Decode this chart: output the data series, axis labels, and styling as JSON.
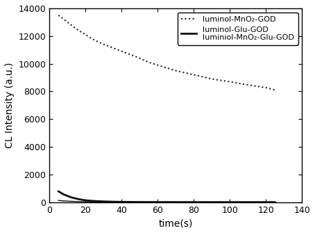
{
  "title": "",
  "xlabel": "time(s)",
  "ylabel": "CL Intensity (a.u.)",
  "xlim": [
    0,
    140
  ],
  "ylim": [
    0,
    14000
  ],
  "yticks": [
    0,
    2000,
    4000,
    6000,
    8000,
    10000,
    12000,
    14000
  ],
  "xticks": [
    0,
    20,
    40,
    60,
    80,
    100,
    120,
    140
  ],
  "line1": {
    "label": "luminol-MnO₂-GOD",
    "color": "#222222",
    "linestyle": "dotted",
    "linewidth": 1.5,
    "x": [
      5,
      8,
      11,
      15,
      20,
      25,
      30,
      35,
      40,
      45,
      50,
      55,
      60,
      65,
      70,
      75,
      80,
      85,
      90,
      95,
      100,
      105,
      110,
      115,
      120,
      125
    ],
    "y": [
      13500,
      13200,
      12900,
      12500,
      12100,
      11700,
      11400,
      11150,
      10900,
      10650,
      10400,
      10100,
      9900,
      9700,
      9500,
      9350,
      9200,
      9050,
      8900,
      8800,
      8700,
      8580,
      8470,
      8370,
      8270,
      8100
    ]
  },
  "line2": {
    "label": "luminol-Glu-GOD",
    "color": "#111111",
    "linestyle": "solid",
    "linewidth": 2.0,
    "x": [
      5,
      8,
      12,
      16,
      20,
      25,
      30,
      35,
      40,
      50,
      60,
      70,
      80,
      90,
      100,
      110,
      120,
      125
    ],
    "y": [
      780,
      550,
      350,
      220,
      130,
      80,
      50,
      30,
      18,
      8,
      4,
      2,
      1,
      0,
      0,
      0,
      0,
      0
    ]
  },
  "line3": {
    "label": "luminiol-MnO₂-Glu-GOD",
    "color": "#111111",
    "linestyle": "solid",
    "linewidth": 1.0,
    "x": [
      5,
      8,
      12,
      16,
      20,
      30,
      40,
      50,
      60,
      70,
      80,
      90,
      100,
      110,
      120,
      125
    ],
    "y": [
      120,
      90,
      60,
      40,
      25,
      12,
      6,
      3,
      2,
      1,
      0,
      0,
      0,
      0,
      0,
      0
    ]
  },
  "legend_fontsize": 8,
  "axis_fontsize": 10,
  "tick_fontsize": 9,
  "background_color": "#ffffff"
}
